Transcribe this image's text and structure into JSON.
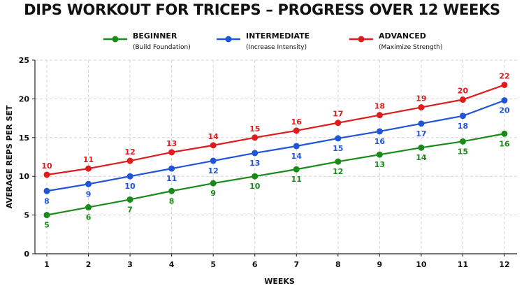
{
  "chart_data": {
    "type": "line",
    "title": "DIPS WORKOUT FOR TRICEPS – PROGRESS OVER 12 WEEKS",
    "xlabel": "WEEKS",
    "ylabel": "AVERAGE REPS PER SET",
    "x": [
      1,
      2,
      3,
      4,
      5,
      6,
      7,
      8,
      9,
      10,
      11,
      12
    ],
    "xlim": [
      1,
      12
    ],
    "ylim": [
      0,
      25
    ],
    "yticks": [
      0,
      5,
      10,
      15,
      20,
      25
    ],
    "grid": true,
    "legend_position": "top",
    "series": [
      {
        "name": "BEGINNER",
        "subtitle": "(Build Foundation)",
        "color": "#1a8a1a",
        "values": [
          5,
          6,
          7,
          8.1,
          9.1,
          10,
          10.9,
          11.9,
          12.8,
          13.7,
          14.5,
          15.5
        ],
        "labels": [
          "5",
          "6",
          "7",
          "8",
          "9",
          "10",
          "11",
          "12",
          "13",
          "14",
          "15",
          "16"
        ]
      },
      {
        "name": "INTERMEDIATE",
        "subtitle": "(Increase Intensity)",
        "color": "#1f55d6",
        "values": [
          8.1,
          9,
          10,
          11,
          12,
          13,
          13.9,
          14.9,
          15.8,
          16.8,
          17.8,
          19.8
        ],
        "labels": [
          "8",
          "9",
          "10",
          "11",
          "12",
          "13",
          "14",
          "15",
          "16",
          "17",
          "18",
          "20"
        ]
      },
      {
        "name": "ADVANCED",
        "subtitle": "(Maximize Strength)",
        "color": "#e01b1b",
        "values": [
          10.2,
          11,
          12,
          13.1,
          14,
          15,
          15.9,
          16.9,
          17.9,
          18.9,
          19.9,
          21.8
        ],
        "labels": [
          "10",
          "11",
          "12",
          "13",
          "14",
          "15",
          "16",
          "17",
          "18",
          "19",
          "20",
          "22"
        ]
      }
    ]
  }
}
